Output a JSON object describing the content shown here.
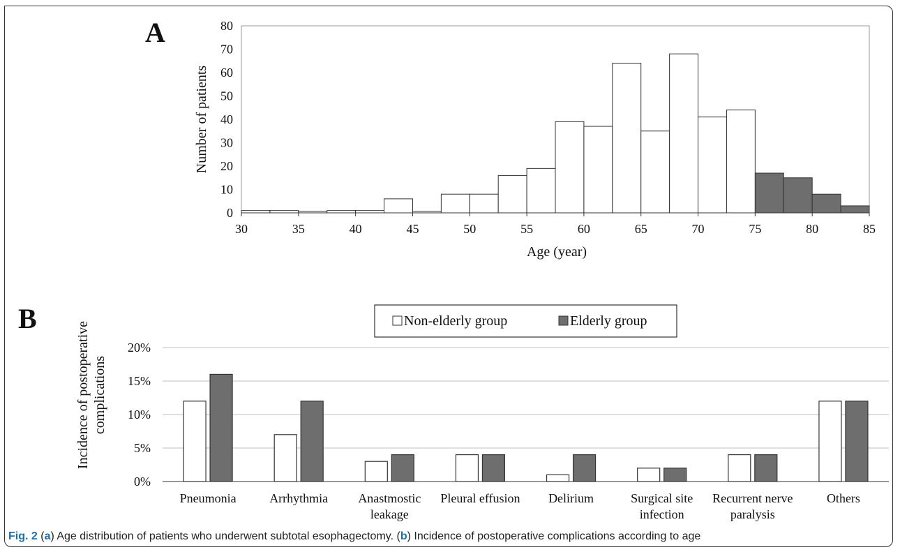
{
  "panel_a_label": "A",
  "panel_b_label": "B",
  "caption": {
    "fig": "Fig. 2",
    "p1": " (",
    "a": "a",
    "p2": ") Age distribution of patients who underwent subtotal esophagectomy. (",
    "b": "b",
    "p3": ") Incidence of postoperative complications according to age"
  },
  "colors": {
    "non_elderly": "#ffffff",
    "elderly": "#6e6e6e",
    "outline": "#333333",
    "grid": "#bfbfbf"
  },
  "chart_data": [
    {
      "type": "bar",
      "panel": "A",
      "xlabel": "Age (year)",
      "ylabel": "Number of patients",
      "ylim": [
        0,
        80
      ],
      "yticks": [
        0,
        10,
        20,
        30,
        40,
        50,
        60,
        70,
        80
      ],
      "xlim": [
        30,
        85
      ],
      "xticks": [
        30,
        35,
        40,
        45,
        50,
        55,
        60,
        65,
        70,
        75,
        80,
        85
      ],
      "bin_width": 2.5,
      "bins": [
        {
          "start": 30,
          "value": 1,
          "group": "non-elderly"
        },
        {
          "start": 32.5,
          "value": 1,
          "group": "non-elderly"
        },
        {
          "start": 35,
          "value": 0,
          "group": "non-elderly"
        },
        {
          "start": 37.5,
          "value": 1,
          "group": "non-elderly"
        },
        {
          "start": 40,
          "value": 1,
          "group": "non-elderly"
        },
        {
          "start": 42.5,
          "value": 6,
          "group": "non-elderly"
        },
        {
          "start": 45,
          "value": 0,
          "group": "non-elderly"
        },
        {
          "start": 47.5,
          "value": 8,
          "group": "non-elderly"
        },
        {
          "start": 50,
          "value": 8,
          "group": "non-elderly"
        },
        {
          "start": 52.5,
          "value": 16,
          "group": "non-elderly"
        },
        {
          "start": 55,
          "value": 19,
          "group": "non-elderly"
        },
        {
          "start": 57.5,
          "value": 39,
          "group": "non-elderly"
        },
        {
          "start": 60,
          "value": 37,
          "group": "non-elderly"
        },
        {
          "start": 62.5,
          "value": 64,
          "group": "non-elderly"
        },
        {
          "start": 65,
          "value": 35,
          "group": "non-elderly"
        },
        {
          "start": 67.5,
          "value": 68,
          "group": "non-elderly"
        },
        {
          "start": 70,
          "value": 41,
          "group": "non-elderly"
        },
        {
          "start": 72.5,
          "value": 44,
          "group": "non-elderly"
        },
        {
          "start": 75,
          "value": 17,
          "group": "elderly"
        },
        {
          "start": 77.5,
          "value": 15,
          "group": "elderly"
        },
        {
          "start": 80,
          "value": 8,
          "group": "elderly"
        },
        {
          "start": 82.5,
          "value": 3,
          "group": "elderly"
        }
      ]
    },
    {
      "type": "bar",
      "panel": "B",
      "ylabel_lines": [
        "Incidence of postoperative",
        "complications"
      ],
      "ylim": [
        0,
        20
      ],
      "yticks": [
        0,
        5,
        10,
        15,
        20
      ],
      "ytick_labels": [
        "0%",
        "5%",
        "10%",
        "15%",
        "20%"
      ],
      "grid": true,
      "legend": "top-center",
      "categories": [
        [
          "Pneumonia"
        ],
        [
          "Arrhythmia"
        ],
        [
          "Anastmostic",
          "leakage"
        ],
        [
          "Pleural effusion"
        ],
        [
          "Delirium"
        ],
        [
          "Surgical site",
          "infection"
        ],
        [
          "Recurrent nerve",
          "paralysis"
        ],
        [
          "Others"
        ]
      ],
      "series": [
        {
          "name": "Non-elderly group",
          "values": [
            12,
            7,
            3,
            4,
            1,
            2,
            4,
            12
          ]
        },
        {
          "name": "Elderly group",
          "values": [
            16,
            12,
            4,
            4,
            4,
            2,
            4,
            12
          ]
        }
      ]
    }
  ]
}
